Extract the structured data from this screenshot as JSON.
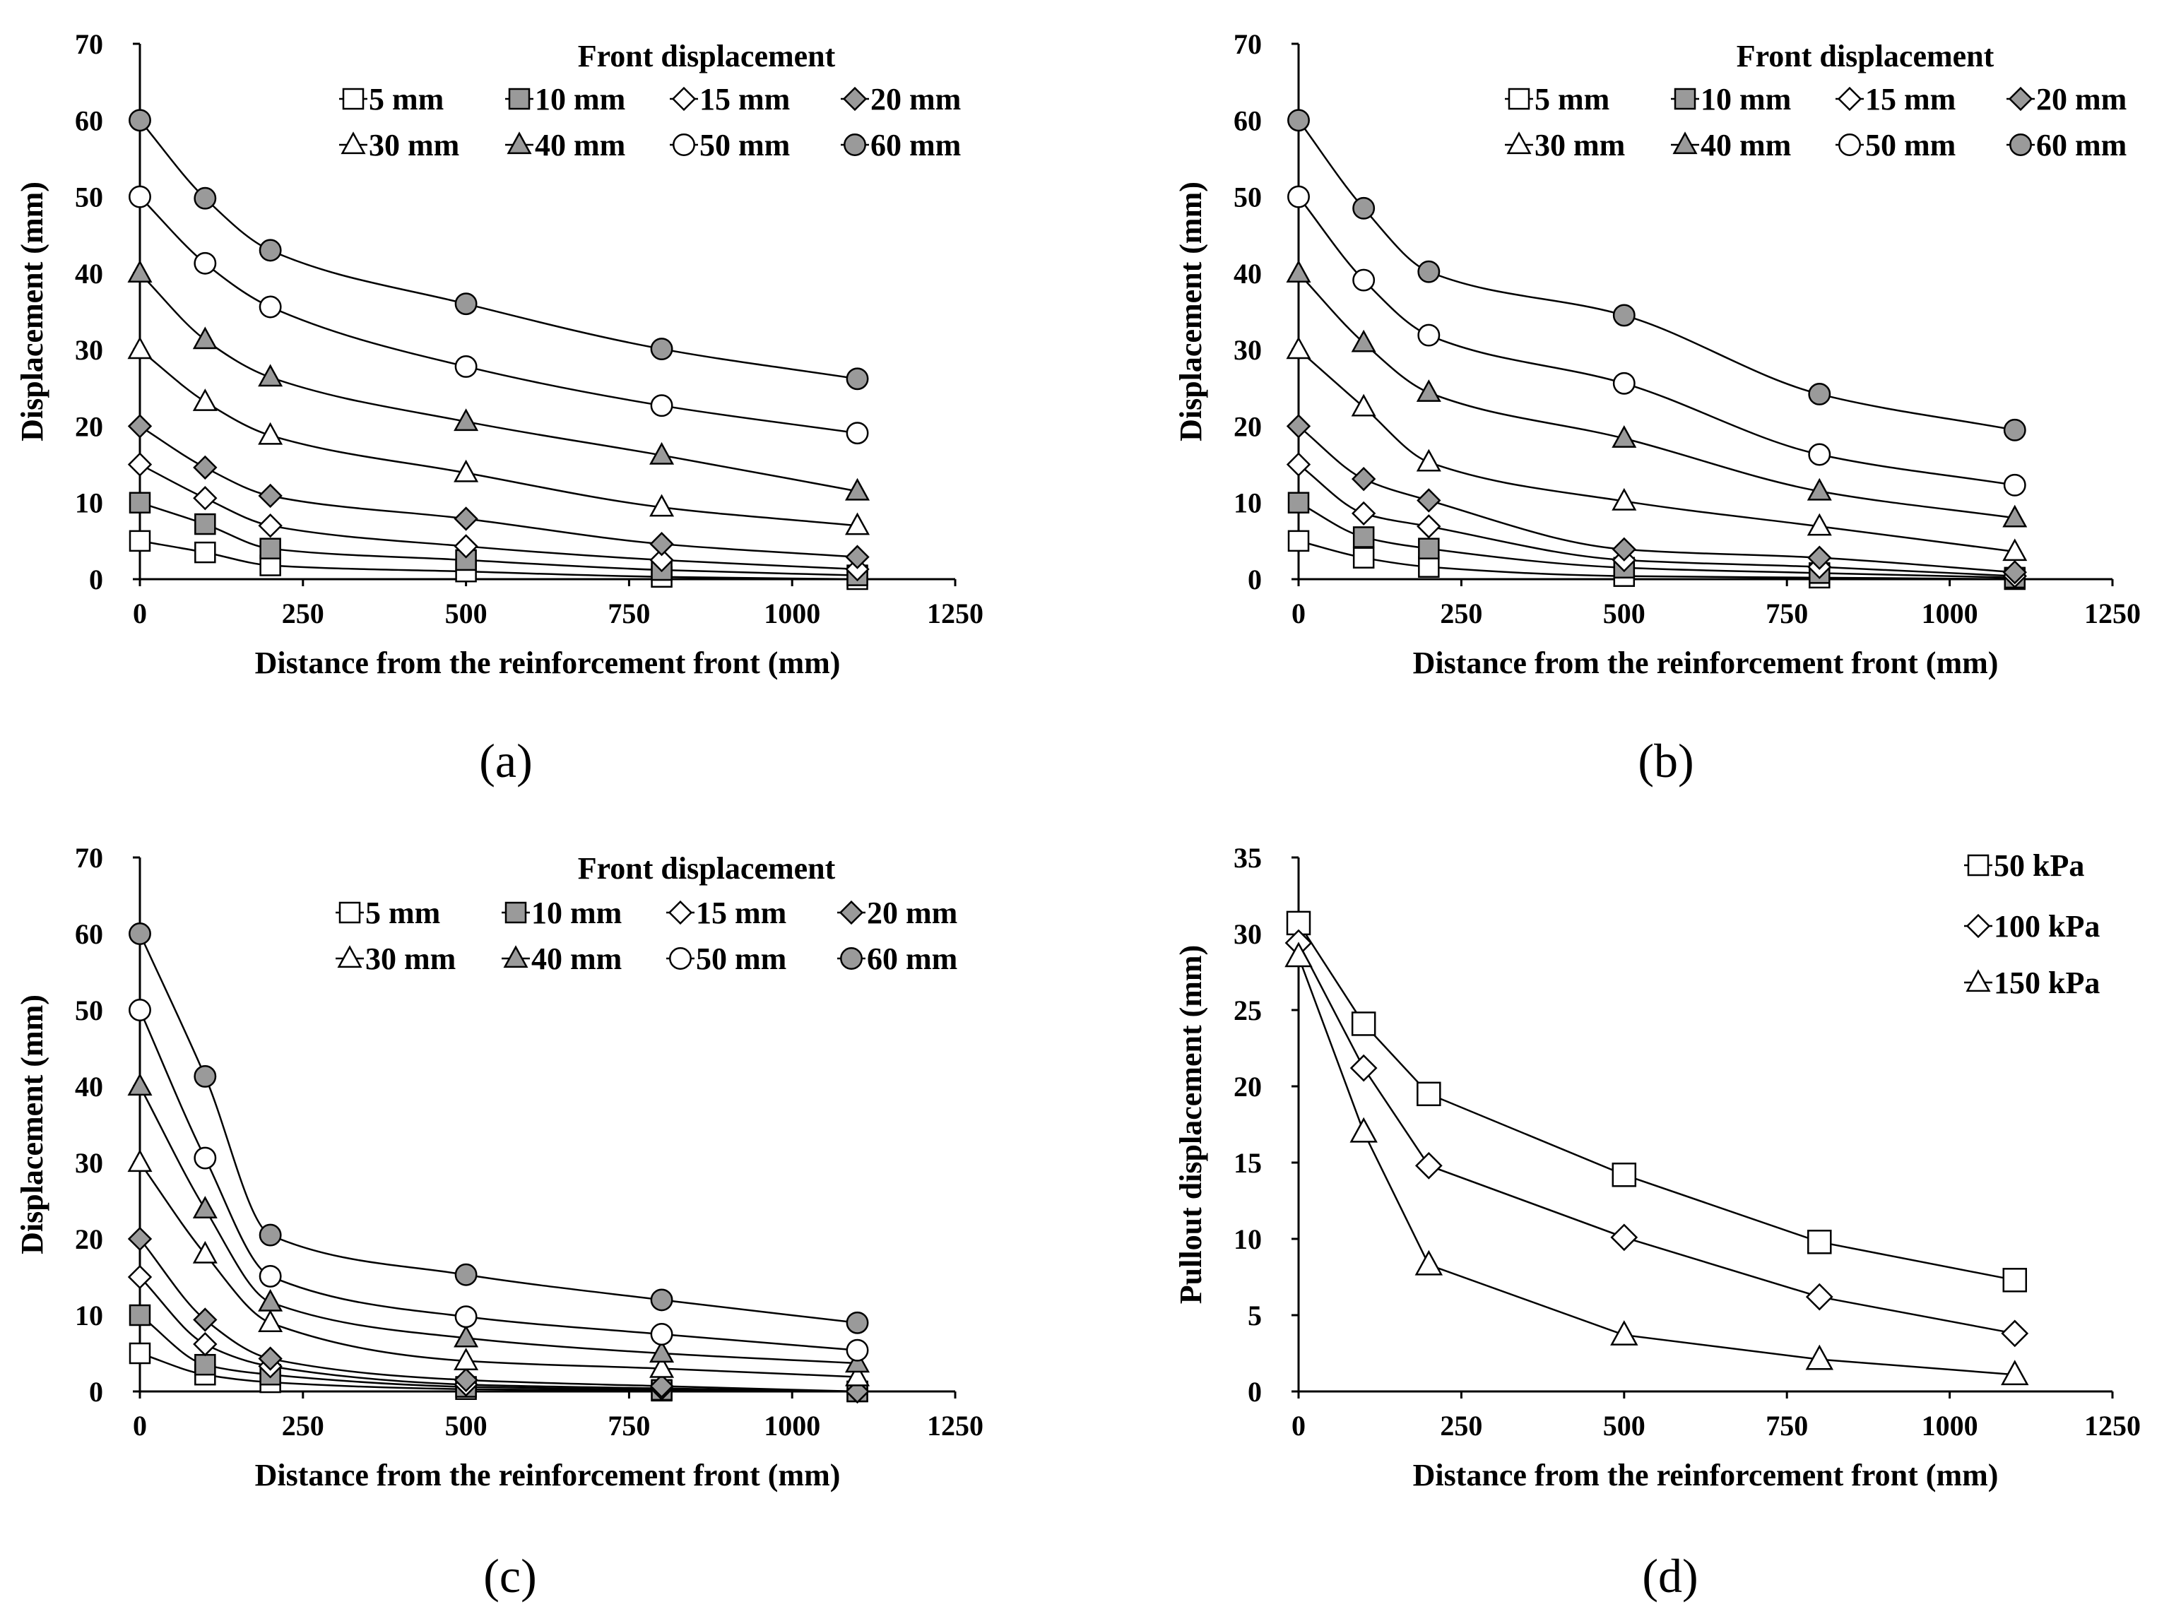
{
  "chart_data": [
    {
      "id": "a",
      "panel_label": "(a)",
      "type": "line",
      "xlabel": "Distance from the reinforcement front (mm)",
      "ylabel": "Displacement (mm)",
      "xlim": [
        0,
        1250
      ],
      "ylim": [
        0,
        70
      ],
      "xticks": [
        0,
        250,
        500,
        750,
        1000,
        1250
      ],
      "yticks": [
        0,
        10,
        20,
        30,
        40,
        50,
        60,
        70
      ],
      "legend_title": "Front displacement",
      "legend_position": "top-right",
      "x": [
        0,
        100,
        200,
        500,
        800,
        1100
      ],
      "series": [
        {
          "name": "5 mm",
          "marker": "square",
          "fill": "white",
          "values": [
            5,
            3.5,
            1.8,
            1.0,
            0.3,
            0
          ]
        },
        {
          "name": "10 mm",
          "marker": "square",
          "fill": "gray",
          "values": [
            10,
            7.2,
            4.0,
            2.5,
            1.2,
            0.5
          ]
        },
        {
          "name": "15 mm",
          "marker": "diamond",
          "fill": "white",
          "values": [
            15,
            10.6,
            7.0,
            4.3,
            2.5,
            1.3
          ]
        },
        {
          "name": "20 mm",
          "marker": "diamond",
          "fill": "gray",
          "values": [
            20,
            14.6,
            10.9,
            7.9,
            4.6,
            2.9
          ]
        },
        {
          "name": "30 mm",
          "marker": "triangle",
          "fill": "white",
          "values": [
            30,
            23.2,
            18.8,
            13.9,
            9.4,
            7.0
          ]
        },
        {
          "name": "40 mm",
          "marker": "triangle",
          "fill": "gray",
          "values": [
            40,
            31.3,
            26.4,
            20.6,
            16.2,
            11.5
          ]
        },
        {
          "name": "50 mm",
          "marker": "circle",
          "fill": "white",
          "values": [
            50,
            41.3,
            35.6,
            27.8,
            22.7,
            19.1
          ]
        },
        {
          "name": "60 mm",
          "marker": "circle",
          "fill": "gray",
          "values": [
            60,
            49.8,
            43.0,
            36.0,
            30.1,
            26.2
          ]
        }
      ]
    },
    {
      "id": "b",
      "panel_label": "(b)",
      "type": "line",
      "xlabel": "Distance from the reinforcement front (mm)",
      "ylabel": "Displacement (mm)",
      "xlim": [
        0,
        1250
      ],
      "ylim": [
        0,
        70
      ],
      "xticks": [
        0,
        250,
        500,
        750,
        1000,
        1250
      ],
      "yticks": [
        0,
        10,
        20,
        30,
        40,
        50,
        60,
        70
      ],
      "legend_title": "Front displacement",
      "legend_position": "top-right",
      "x": [
        0,
        100,
        200,
        500,
        800,
        1100
      ],
      "series": [
        {
          "name": "5 mm",
          "marker": "square",
          "fill": "white",
          "values": [
            5,
            2.8,
            1.6,
            0.4,
            0.2,
            0
          ]
        },
        {
          "name": "10 mm",
          "marker": "square",
          "fill": "gray",
          "values": [
            10,
            5.5,
            4.0,
            1.5,
            0.8,
            0.2
          ]
        },
        {
          "name": "15 mm",
          "marker": "diamond",
          "fill": "white",
          "values": [
            15,
            8.6,
            6.9,
            2.5,
            1.6,
            0.4
          ]
        },
        {
          "name": "20 mm",
          "marker": "diamond",
          "fill": "gray",
          "values": [
            20,
            13.1,
            10.3,
            3.9,
            2.8,
            0.9
          ]
        },
        {
          "name": "30 mm",
          "marker": "triangle",
          "fill": "white",
          "values": [
            30,
            22.5,
            15.3,
            10.2,
            6.9,
            3.6
          ]
        },
        {
          "name": "40 mm",
          "marker": "triangle",
          "fill": "gray",
          "values": [
            40,
            30.9,
            24.4,
            18.4,
            11.5,
            8.0
          ]
        },
        {
          "name": "50 mm",
          "marker": "circle",
          "fill": "white",
          "values": [
            50,
            39.1,
            31.9,
            25.6,
            16.3,
            12.3
          ]
        },
        {
          "name": "60 mm",
          "marker": "circle",
          "fill": "gray",
          "values": [
            60,
            48.5,
            40.2,
            34.5,
            24.2,
            19.5
          ]
        }
      ]
    },
    {
      "id": "c",
      "panel_label": "(c)",
      "type": "line",
      "xlabel": "Distance from the reinforcement front (mm)",
      "ylabel": "Displacement (mm)",
      "xlim": [
        0,
        1250
      ],
      "ylim": [
        0,
        70
      ],
      "xticks": [
        0,
        250,
        500,
        750,
        1000,
        1250
      ],
      "yticks": [
        0,
        10,
        20,
        30,
        40,
        50,
        60,
        70
      ],
      "legend_title": "Front displacement",
      "legend_position": "top-right",
      "x": [
        0,
        100,
        200,
        500,
        800,
        1100
      ],
      "series": [
        {
          "name": "5 mm",
          "marker": "square",
          "fill": "white",
          "values": [
            5,
            2.2,
            1.2,
            0.3,
            0.1,
            0
          ]
        },
        {
          "name": "10 mm",
          "marker": "square",
          "fill": "gray",
          "values": [
            10,
            3.5,
            2.2,
            0.6,
            0.2,
            0
          ]
        },
        {
          "name": "15 mm",
          "marker": "diamond",
          "fill": "white",
          "values": [
            15,
            6.2,
            3.3,
            0.9,
            0.4,
            0
          ]
        },
        {
          "name": "20 mm",
          "marker": "diamond",
          "fill": "gray",
          "values": [
            20,
            9.4,
            4.3,
            1.5,
            0.7,
            0
          ]
        },
        {
          "name": "30 mm",
          "marker": "triangle",
          "fill": "white",
          "values": [
            30,
            18.0,
            9.0,
            4.0,
            3.0,
            1.9
          ]
        },
        {
          "name": "40 mm",
          "marker": "triangle",
          "fill": "gray",
          "values": [
            40,
            23.9,
            11.7,
            7.0,
            5.0,
            3.7
          ]
        },
        {
          "name": "50 mm",
          "marker": "circle",
          "fill": "white",
          "values": [
            50,
            30.6,
            15.1,
            9.8,
            7.5,
            5.4
          ]
        },
        {
          "name": "60 mm",
          "marker": "circle",
          "fill": "gray",
          "values": [
            60,
            41.3,
            20.5,
            15.3,
            12.0,
            9.0
          ]
        }
      ]
    },
    {
      "id": "d",
      "panel_label": "(d)",
      "type": "line",
      "xlabel": "Distance from the reinforcement front (mm)",
      "ylabel": "Pullout displacement (mm)",
      "xlim": [
        0,
        1250
      ],
      "ylim": [
        0,
        35
      ],
      "xticks": [
        0,
        250,
        500,
        750,
        1000,
        1250
      ],
      "yticks": [
        0,
        5,
        10,
        15,
        20,
        25,
        30,
        35
      ],
      "legend_title": "",
      "legend_position": "top-right",
      "x": [
        0,
        100,
        200,
        500,
        800,
        1100
      ],
      "series": [
        {
          "name": "50 kPa",
          "marker": "square",
          "fill": "white",
          "values": [
            30.7,
            24.1,
            19.5,
            14.2,
            9.8,
            7.3
          ]
        },
        {
          "name": "100 kPa",
          "marker": "diamond",
          "fill": "white",
          "values": [
            29.4,
            21.2,
            14.8,
            10.1,
            6.2,
            3.8
          ]
        },
        {
          "name": "150 kPa",
          "marker": "triangle",
          "fill": "white",
          "values": [
            28.5,
            17.0,
            8.3,
            3.7,
            2.1,
            1.1
          ]
        }
      ]
    }
  ]
}
